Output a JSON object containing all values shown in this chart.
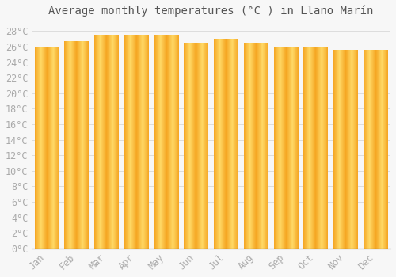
{
  "months": [
    "Jan",
    "Feb",
    "Mar",
    "Apr",
    "May",
    "Jun",
    "Jul",
    "Aug",
    "Sep",
    "Oct",
    "Nov",
    "Dec"
  ],
  "values": [
    26.0,
    26.7,
    27.5,
    27.5,
    27.5,
    26.5,
    27.0,
    26.5,
    26.0,
    26.0,
    25.5,
    25.5
  ],
  "title": "Average monthly temperatures (°C ) in Llano Marín",
  "ylim": [
    0,
    29
  ],
  "ytick_step": 2,
  "background_color": "#f7f7f7",
  "grid_color": "#dddddd",
  "bar_color_edge": "#F5A623",
  "bar_color_center": "#FFD966",
  "title_fontsize": 10,
  "tick_fontsize": 8.5
}
